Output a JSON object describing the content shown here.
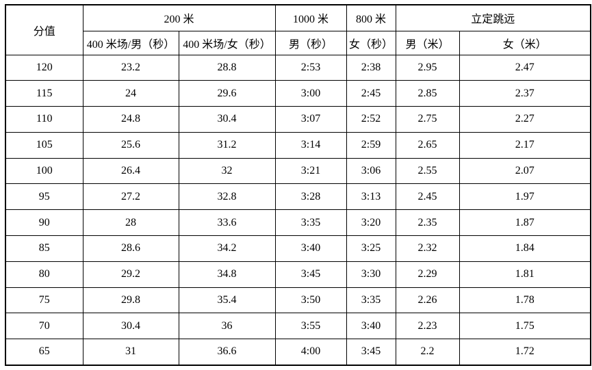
{
  "table": {
    "header": {
      "score_label": "分值",
      "groups": [
        {
          "label": "200 米"
        },
        {
          "label": "1000 米"
        },
        {
          "label": "800 米"
        },
        {
          "label": "立定跳远"
        }
      ],
      "sub_headers": [
        "400 米场/男（秒）",
        "400 米场/女（秒）",
        "男（秒）",
        "女（秒）",
        "男（米）",
        "女（米）"
      ]
    },
    "rows": [
      {
        "score": "120",
        "values": [
          "23.2",
          "28.8",
          "2:53",
          "2:38",
          "2.95",
          "2.47"
        ]
      },
      {
        "score": "115",
        "values": [
          "24",
          "29.6",
          "3:00",
          "2:45",
          "2.85",
          "2.37"
        ]
      },
      {
        "score": "110",
        "values": [
          "24.8",
          "30.4",
          "3:07",
          "2:52",
          "2.75",
          "2.27"
        ]
      },
      {
        "score": "105",
        "values": [
          "25.6",
          "31.2",
          "3:14",
          "2:59",
          "2.65",
          "2.17"
        ]
      },
      {
        "score": "100",
        "values": [
          "26.4",
          "32",
          "3:21",
          "3:06",
          "2.55",
          "2.07"
        ]
      },
      {
        "score": "95",
        "values": [
          "27.2",
          "32.8",
          "3:28",
          "3:13",
          "2.45",
          "1.97"
        ]
      },
      {
        "score": "90",
        "values": [
          "28",
          "33.6",
          "3:35",
          "3:20",
          "2.35",
          "1.87"
        ]
      },
      {
        "score": "85",
        "values": [
          "28.6",
          "34.2",
          "3:40",
          "3:25",
          "2.32",
          "1.84"
        ]
      },
      {
        "score": "80",
        "values": [
          "29.2",
          "34.8",
          "3:45",
          "3:30",
          "2.29",
          "1.81"
        ]
      },
      {
        "score": "75",
        "values": [
          "29.8",
          "35.4",
          "3:50",
          "3:35",
          "2.26",
          "1.78"
        ]
      },
      {
        "score": "70",
        "values": [
          "30.4",
          "36",
          "3:55",
          "3:40",
          "2.23",
          "1.75"
        ]
      },
      {
        "score": "65",
        "values": [
          "31",
          "36.6",
          "4:00",
          "3:45",
          "2.2",
          "1.72"
        ]
      }
    ],
    "colors": {
      "border": "#000000",
      "text": "#000000",
      "background": "#ffffff"
    }
  }
}
